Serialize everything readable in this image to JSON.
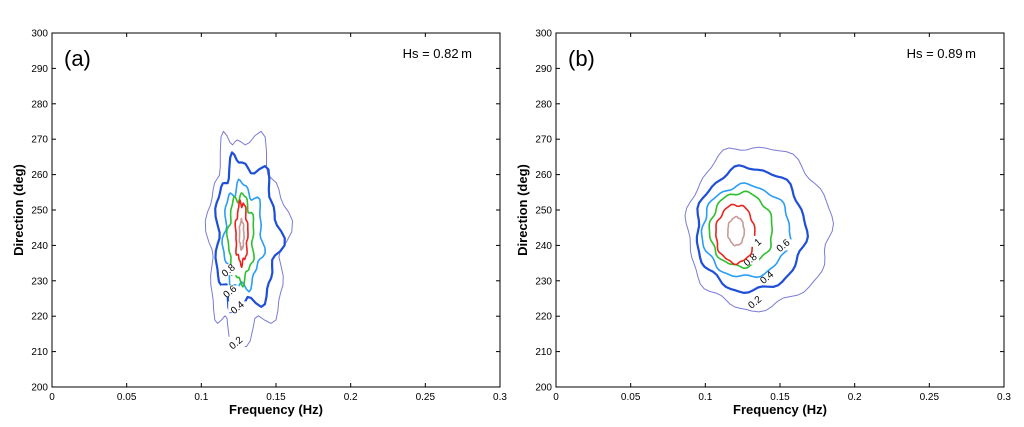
{
  "chart_data": [
    {
      "type": "contour",
      "panel_label": "(a)",
      "annotation": "Hs = 0.82 m",
      "xlabel": "Frequency (Hz)",
      "ylabel": "Direction (deg)",
      "xlim": [
        0,
        0.3
      ],
      "ylim": [
        200,
        300
      ],
      "xticks": [
        "0",
        "0.05",
        "0.1",
        "0.15",
        "0.2",
        "0.25",
        "0.3"
      ],
      "yticks": [
        "200",
        "210",
        "220",
        "230",
        "240",
        "250",
        "260",
        "270",
        "280",
        "290",
        "300"
      ],
      "grid": false,
      "contours": [
        {
          "level": "0.2",
          "label": "0.2",
          "color": "#7b7bd6",
          "cx": 0.124,
          "cy": 241,
          "rx_left": 0.019,
          "rx_right": 0.033,
          "ry_top": 30,
          "ry_bottom": 28,
          "label_x": 0.123,
          "label_y": 212.5
        },
        {
          "level": "0.4",
          "label": "0.4",
          "color": "#1f4fd8",
          "cx": 0.125,
          "cy": 242,
          "rx_left": 0.015,
          "rx_right": 0.027,
          "ry_top": 22,
          "ry_bottom": 20,
          "label_x": 0.124,
          "label_y": 222.5
        },
        {
          "level": "0.6",
          "label": "0.6",
          "color": "#2a9df4",
          "cx": 0.126,
          "cy": 242,
          "rx_left": 0.011,
          "rx_right": 0.015,
          "ry_top": 15,
          "ry_bottom": 14,
          "label_x": 0.119,
          "label_y": 227
        },
        {
          "level": "0.8",
          "label": "0.8",
          "color": "#2fbf2f",
          "cx": 0.126,
          "cy": 242,
          "rx_left": 0.008,
          "rx_right": 0.009,
          "ry_top": 12,
          "ry_bottom": 12,
          "label_x": 0.118,
          "label_y": 233
        },
        {
          "level": "1",
          "label": "",
          "color": "#e8261f",
          "cx": 0.127,
          "cy": 243,
          "rx_left": 0.004,
          "rx_right": 0.004,
          "ry_top": 9,
          "ry_bottom": 8,
          "label_x": 0,
          "label_y": 0
        },
        {
          "level": "1.2",
          "label": "",
          "color": "#c89a9a",
          "cx": 0.127,
          "cy": 243,
          "rx_left": 0.0015,
          "rx_right": 0.0015,
          "ry_top": 4,
          "ry_bottom": 4,
          "label_x": 0,
          "label_y": 0
        }
      ]
    },
    {
      "type": "contour",
      "panel_label": "(b)",
      "annotation": "Hs = 0.89 m",
      "xlabel": "Frequency (Hz)",
      "ylabel": "Direction (deg)",
      "xlim": [
        0,
        0.3
      ],
      "ylim": [
        200,
        300
      ],
      "xticks": [
        "0",
        "0.05",
        "0.1",
        "0.15",
        "0.2",
        "0.25",
        "0.3"
      ],
      "yticks": [
        "200",
        "210",
        "220",
        "230",
        "240",
        "250",
        "260",
        "270",
        "280",
        "290",
        "300"
      ],
      "grid": false,
      "contours": [
        {
          "level": "0.2",
          "label": "0.2",
          "color": "#7b7bd6",
          "cx": 0.131,
          "cy": 244,
          "rx_left": 0.043,
          "rx_right": 0.053,
          "ry_top": 24,
          "ry_bottom": 22,
          "label_x": 0.133,
          "label_y": 224
        },
        {
          "level": "0.4",
          "label": "0.4",
          "color": "#1f4fd8",
          "cx": 0.129,
          "cy": 244,
          "rx_left": 0.035,
          "rx_right": 0.038,
          "ry_top": 18,
          "ry_bottom": 17,
          "label_x": 0.141,
          "label_y": 231
        },
        {
          "level": "0.6",
          "label": "0.6",
          "color": "#2a9df4",
          "cx": 0.126,
          "cy": 244,
          "rx_left": 0.028,
          "rx_right": 0.031,
          "ry_top": 13,
          "ry_bottom": 13,
          "label_x": 0.152,
          "label_y": 240
        },
        {
          "level": "0.8",
          "label": "0.8",
          "color": "#2fbf2f",
          "cx": 0.124,
          "cy": 244,
          "rx_left": 0.021,
          "rx_right": 0.021,
          "ry_top": 11,
          "ry_bottom": 10,
          "label_x": 0.13,
          "label_y": 236
        },
        {
          "level": "1",
          "label": "1",
          "color": "#e8261f",
          "cx": 0.121,
          "cy": 243,
          "rx_left": 0.014,
          "rx_right": 0.012,
          "ry_top": 8.5,
          "ry_bottom": 8,
          "label_x": 0.135,
          "label_y": 241
        },
        {
          "level": "1.2",
          "label": "",
          "color": "#c89a9a",
          "cx": 0.121,
          "cy": 244,
          "rx_left": 0.006,
          "rx_right": 0.005,
          "ry_top": 4,
          "ry_bottom": 4,
          "label_x": 0,
          "label_y": 0
        }
      ]
    }
  ]
}
